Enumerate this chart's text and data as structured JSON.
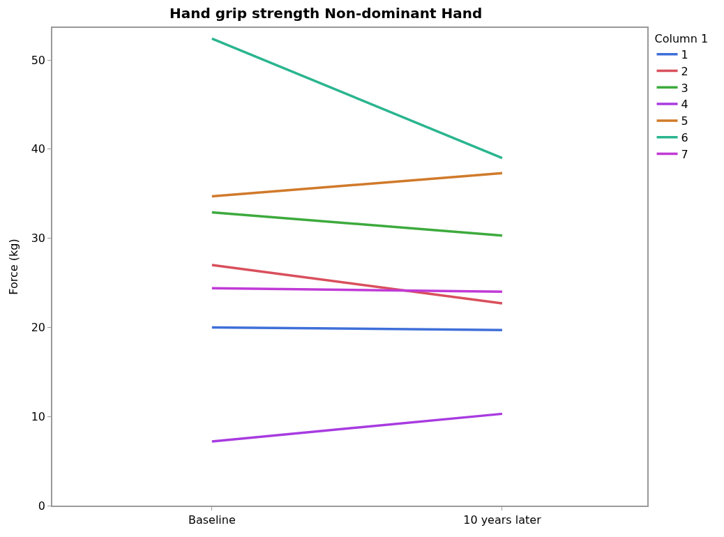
{
  "chart_data": {
    "type": "line",
    "title": "Hand grip strength Non-dominant Hand",
    "ylabel": "Force (kg)",
    "legend_title": "Column 1",
    "categories": [
      "Baseline",
      "10 years later"
    ],
    "series": [
      {
        "name": "1",
        "color": "#3f6fd9",
        "values": [
          20.0,
          19.7
        ]
      },
      {
        "name": "2",
        "color": "#d94f5c",
        "values": [
          27.0,
          22.7
        ]
      },
      {
        "name": "3",
        "color": "#3daa3d",
        "values": [
          32.9,
          30.3
        ]
      },
      {
        "name": "4",
        "color": "#a83be0",
        "values": [
          7.2,
          10.3
        ]
      },
      {
        "name": "5",
        "color": "#d07a2a",
        "values": [
          34.7,
          37.3
        ]
      },
      {
        "name": "6",
        "color": "#2ab58f",
        "values": [
          52.4,
          39.0
        ]
      },
      {
        "name": "7",
        "color": "#c03ad6",
        "values": [
          24.4,
          24.0
        ]
      }
    ],
    "ylim": [
      0,
      53.6
    ],
    "yticks": [
      0,
      10,
      20,
      30,
      40,
      50
    ],
    "legend": "top right",
    "marker": "none",
    "line_style": "solid"
  }
}
